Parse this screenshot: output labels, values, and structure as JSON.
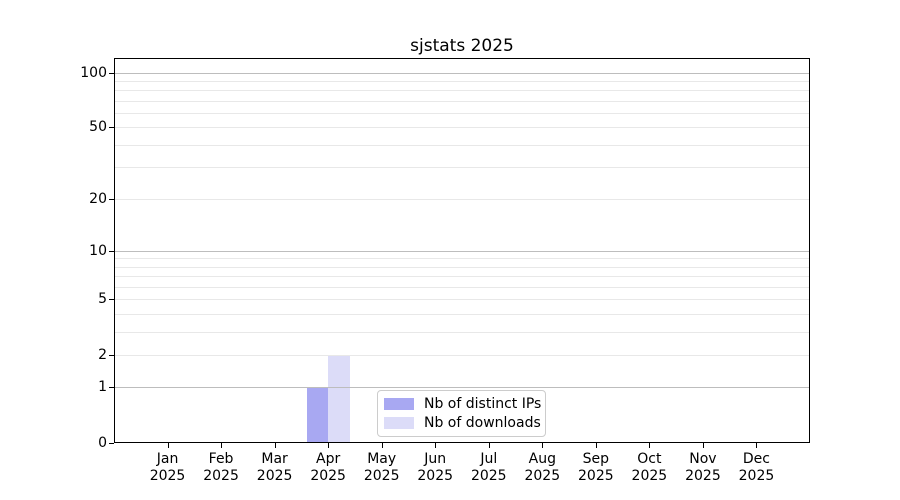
{
  "chart_data": {
    "type": "bar",
    "title": "sjstats 2025",
    "x_tick_months": [
      "Jan",
      "Feb",
      "Mar",
      "Apr",
      "May",
      "Jun",
      "Jul",
      "Aug",
      "Sep",
      "Oct",
      "Nov",
      "Dec"
    ],
    "x_tick_year": "2025",
    "y_scale": "log1p",
    "ylim": [
      0,
      120
    ],
    "y_major_ticks": [
      0,
      1,
      2,
      5,
      10,
      20,
      50,
      100
    ],
    "y_tick_labels": [
      "0",
      "1",
      "2",
      "5",
      "10",
      "20",
      "50",
      "100"
    ],
    "y_decade_gridlines": [
      1,
      10,
      100
    ],
    "y_minor_gridlines": [
      3,
      4,
      6,
      7,
      8,
      9,
      30,
      40,
      60,
      70,
      80,
      90
    ],
    "grid": true,
    "legend_position": "lower center",
    "series": [
      {
        "name": "Nb of distinct IPs",
        "key": "distinct-ips",
        "color": "#a8a8f2",
        "values": [
          0,
          0,
          0,
          1,
          0,
          0,
          0,
          0,
          0,
          0,
          0,
          0
        ]
      },
      {
        "name": "Nb of downloads",
        "key": "downloads",
        "color": "#dcdcf8",
        "values": [
          0,
          0,
          0,
          2,
          0,
          0,
          0,
          0,
          0,
          0,
          0,
          0
        ]
      }
    ],
    "colors": {
      "major_grid": "#bdbdbd",
      "minor_grid": "#e8e8e8",
      "spine": "#000000",
      "legend_border": "#cccccc",
      "text": "#000000",
      "background": "#ffffff"
    }
  }
}
